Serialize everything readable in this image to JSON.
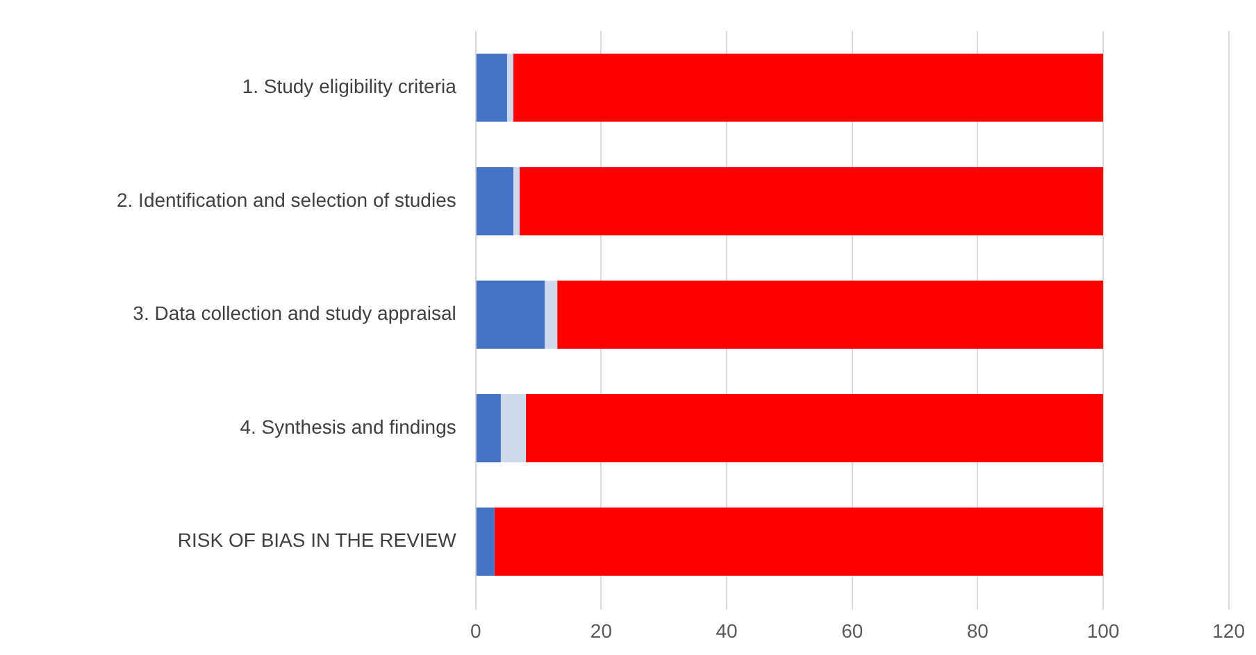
{
  "chart_data": {
    "type": "bar",
    "orientation": "horizontal",
    "stacked": true,
    "categories": [
      "1. Study eligibility criteria",
      "2. Identification and selection of studies",
      "3. Data collection and study appraisal",
      "4. Synthesis and findings",
      "RISK OF BIAS IN THE REVIEW"
    ],
    "series": [
      {
        "color": "#4472c4",
        "values": [
          5,
          6,
          11,
          4,
          3
        ]
      },
      {
        "color": "#cfd9ee",
        "values": [
          1,
          1,
          2,
          4,
          0
        ]
      },
      {
        "color": "#ff0000",
        "values": [
          94,
          93,
          87,
          92,
          97
        ]
      }
    ],
    "xlim": [
      0,
      120
    ],
    "xticks": [
      0,
      20,
      40,
      60,
      80,
      100,
      120
    ],
    "grid": "x",
    "legend": false
  }
}
